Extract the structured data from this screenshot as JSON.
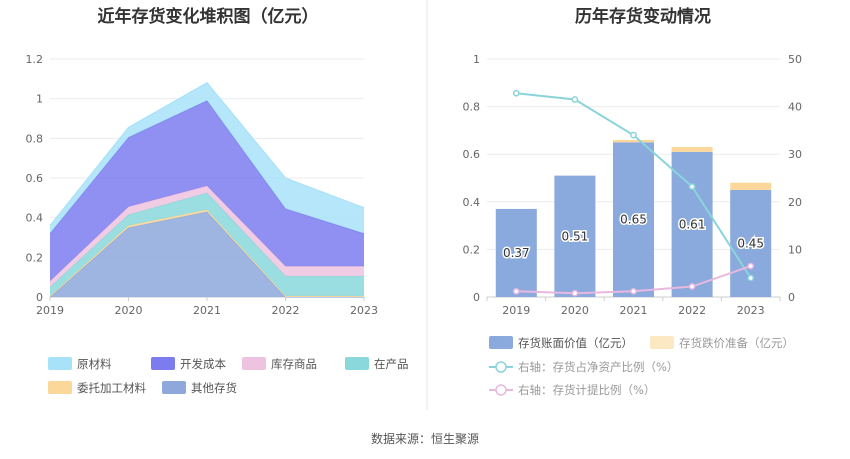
{
  "source_text": "数据来源：恒生聚源",
  "chart_data": [
    {
      "type": "area",
      "stacked": true,
      "title": "近年存货变化堆积图（亿元）",
      "x": [
        "2019",
        "2020",
        "2021",
        "2022",
        "2023"
      ],
      "ylim": [
        0,
        1.2
      ],
      "yticks": [
        "0",
        "0.2",
        "0.4",
        "0.6",
        "0.8",
        "1",
        "1.2"
      ],
      "legend_position": "bottom",
      "series": [
        {
          "name": "其他存货",
          "color": "#8ea8dc",
          "values": [
            0.0,
            0.35,
            0.43,
            0.0,
            0.0
          ]
        },
        {
          "name": "委托加工材料",
          "color": "#fbd89a",
          "values": [
            0.005,
            0.01,
            0.01,
            0.005,
            0.005
          ]
        },
        {
          "name": "在产品",
          "color": "#8ad8dc",
          "values": [
            0.045,
            0.055,
            0.085,
            0.1,
            0.1
          ]
        },
        {
          "name": "库存商品",
          "color": "#eec3e0",
          "values": [
            0.03,
            0.04,
            0.035,
            0.05,
            0.05
          ]
        },
        {
          "name": "开发成本",
          "color": "#7c7cf0",
          "values": [
            0.24,
            0.35,
            0.43,
            0.29,
            0.165
          ]
        },
        {
          "name": "原材料",
          "color": "#a8e2f8",
          "values": [
            0.04,
            0.05,
            0.09,
            0.155,
            0.13
          ]
        }
      ],
      "legend_order": [
        "原材料",
        "开发成本",
        "库存商品",
        "在产品",
        "委托加工材料",
        "其他存货"
      ]
    },
    {
      "type": "bar",
      "title": "历年存货变动情况",
      "categories": [
        "2019",
        "2020",
        "2021",
        "2022",
        "2023"
      ],
      "ylim": [
        0,
        1
      ],
      "yticks": [
        "0",
        "0.2",
        "0.4",
        "0.6",
        "0.8",
        "1"
      ],
      "y2lim": [
        0,
        50
      ],
      "y2ticks": [
        "0",
        "10",
        "20",
        "30",
        "40",
        "50"
      ],
      "legend_position": "bottom",
      "series": [
        {
          "name": "存货账面价值（亿元）",
          "kind": "bar",
          "axis": "left",
          "color": "#8aa9dc",
          "values": [
            0.37,
            0.51,
            0.65,
            0.61,
            0.45
          ],
          "labels": [
            "0.37",
            "0.51",
            "0.65",
            "0.61",
            "0.45"
          ]
        },
        {
          "name": "存货跌价准备（亿元）",
          "kind": "bar-stack",
          "axis": "left",
          "color": "#fbd89a",
          "values": [
            0.0,
            0.0,
            0.01,
            0.02,
            0.03
          ]
        },
        {
          "name": "右轴：存货占净资产比例（%）",
          "kind": "line",
          "axis": "right",
          "color": "#8ad4dc",
          "values": [
            42.8,
            41.5,
            34.0,
            23.2,
            4.0
          ]
        },
        {
          "name": "右轴：存货计提比例（%）",
          "kind": "line",
          "axis": "right",
          "color": "#e8b8e0",
          "values": [
            1.2,
            0.8,
            1.2,
            2.2,
            6.5
          ]
        }
      ]
    }
  ]
}
